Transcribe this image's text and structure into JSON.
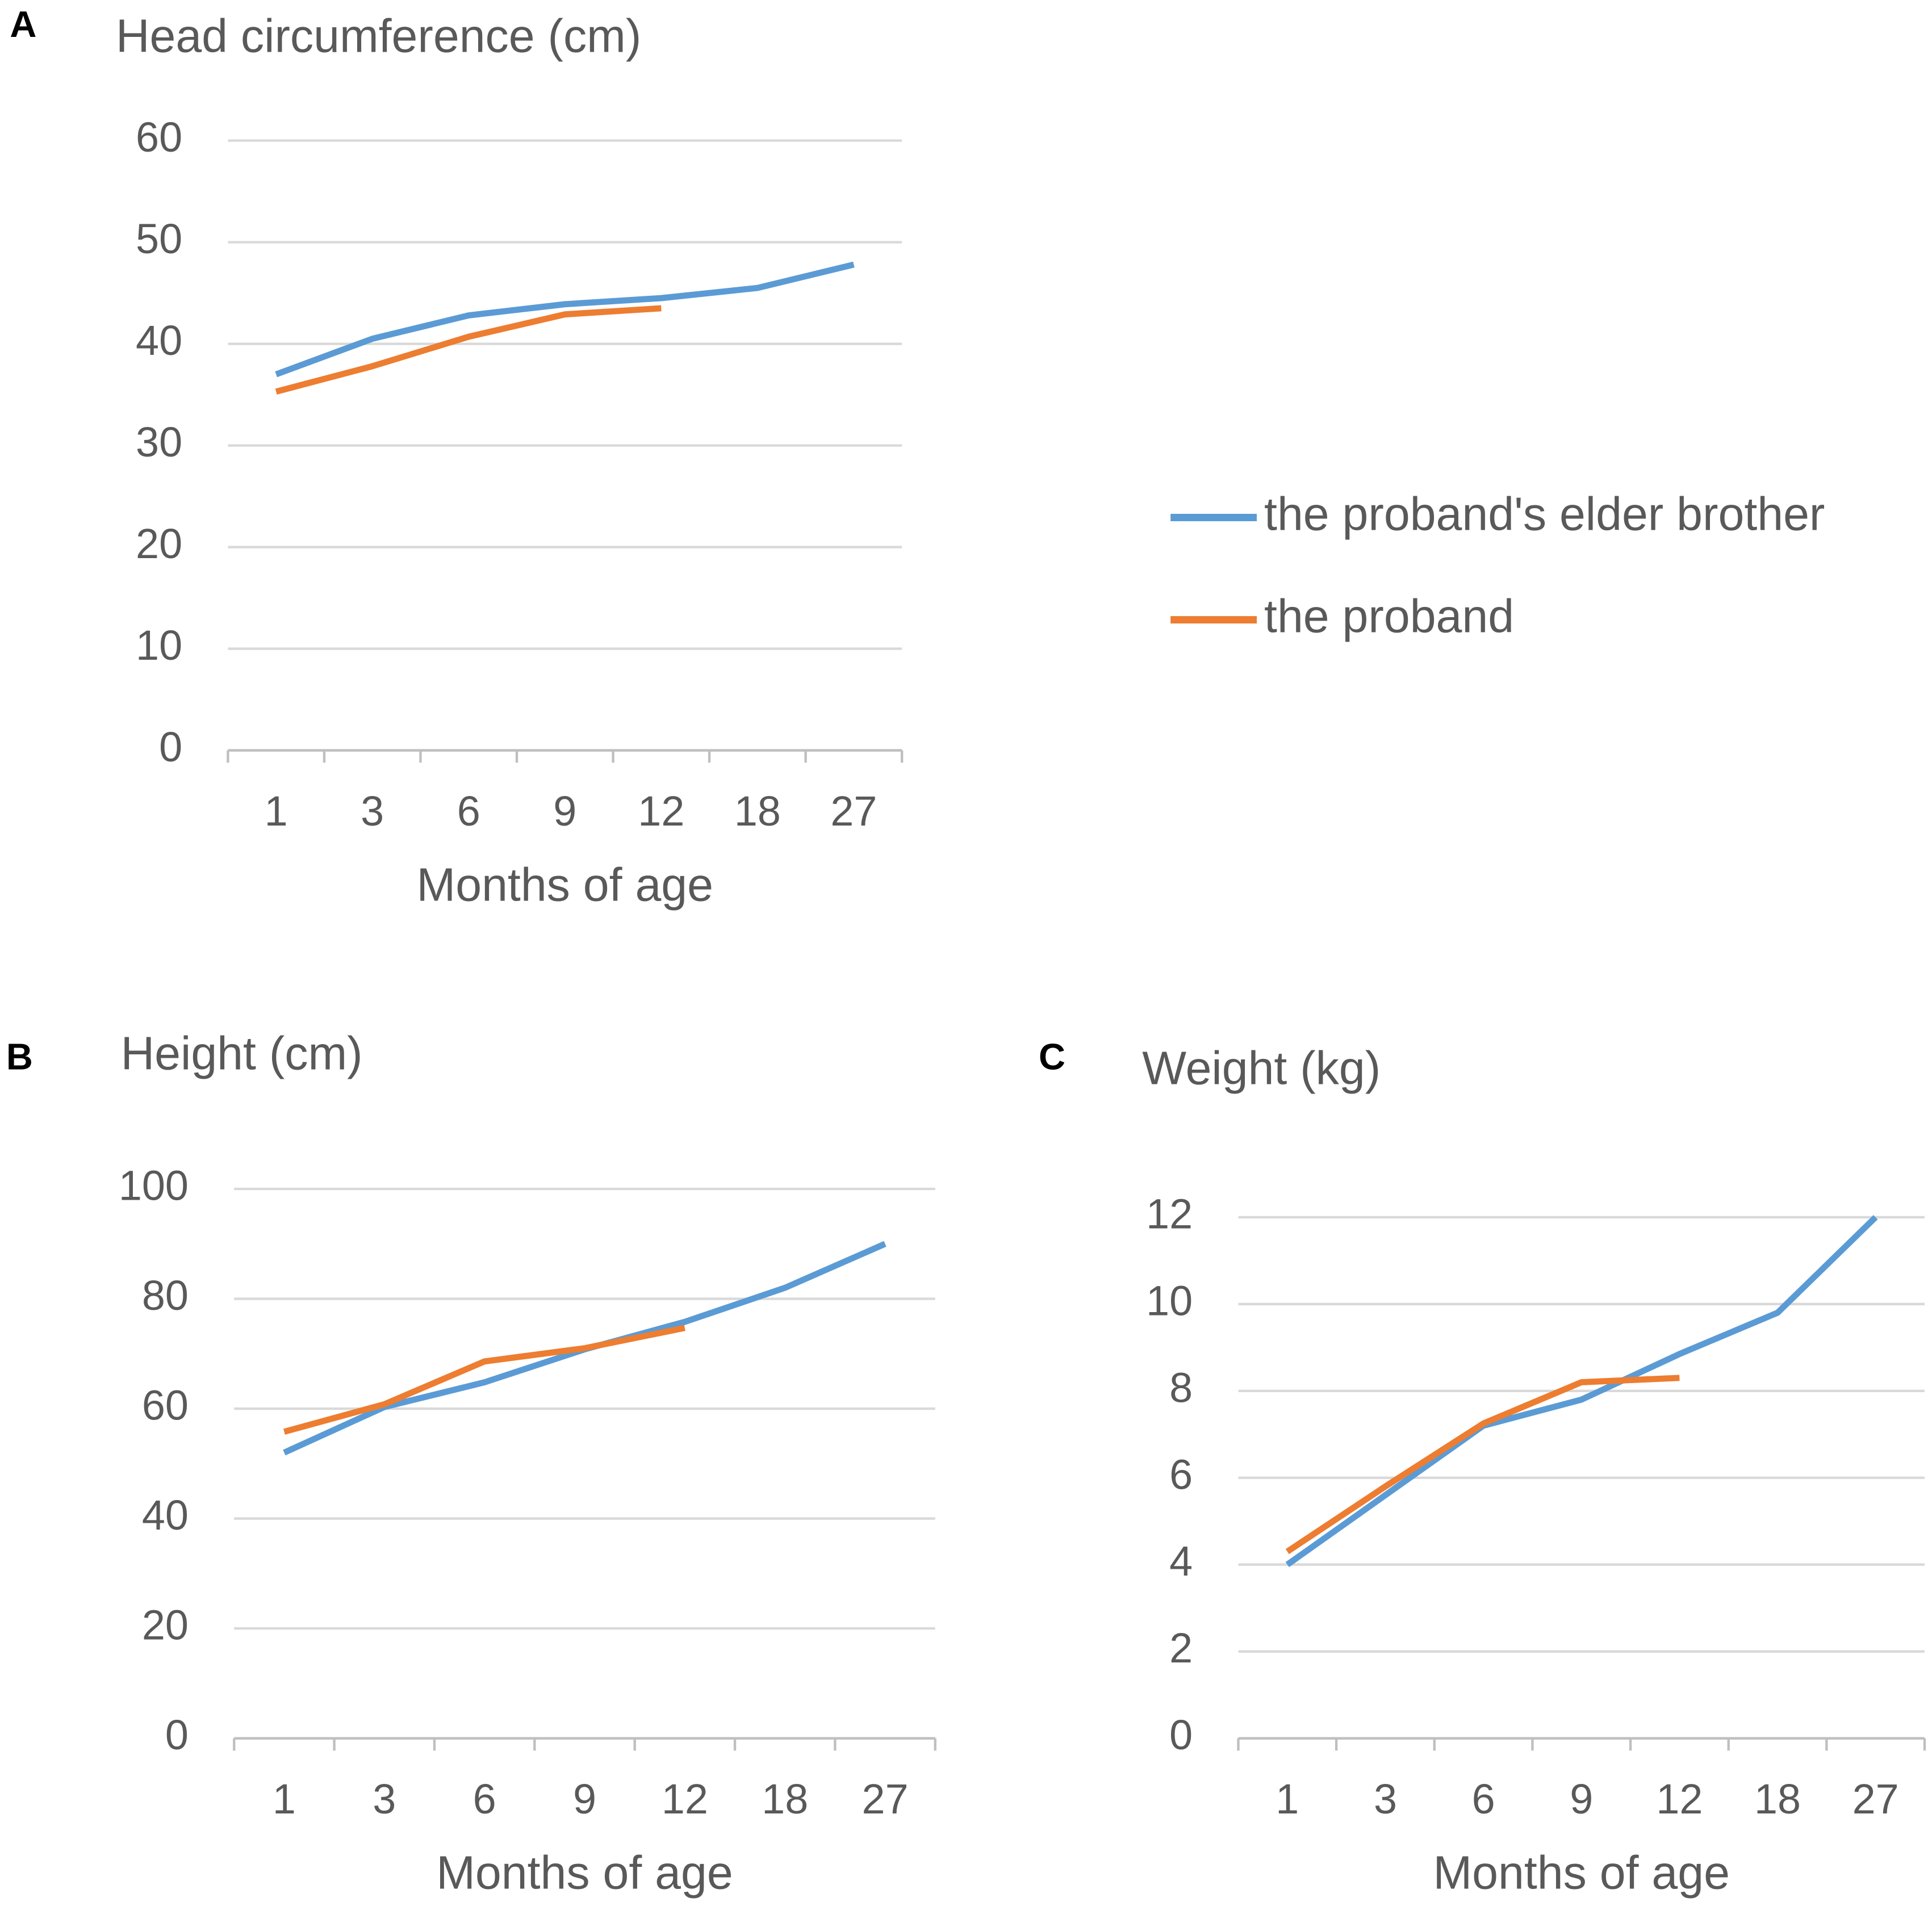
{
  "chart_data": [
    {
      "type": "line",
      "panel_label": "A",
      "title": "Head circumference (cm)",
      "x_label": "Months of age",
      "categories": [
        "1",
        "3",
        "6",
        "9",
        "12",
        "18",
        "27"
      ],
      "series": [
        {
          "name": "the proband's elder brother",
          "color": "#5b9bd5",
          "values": [
            37,
            40.5,
            42.8,
            43.9,
            44.5,
            45.5,
            47.8
          ]
        },
        {
          "name": "the proband",
          "color": "#ed7d31",
          "values": [
            35.3,
            37.8,
            40.7,
            42.9,
            43.5,
            null,
            null
          ]
        }
      ],
      "ylim": [
        0,
        60
      ],
      "yticks": [
        0,
        10,
        20,
        30,
        40,
        50,
        60
      ],
      "grid": true,
      "legend": "right"
    },
    {
      "type": "line",
      "panel_label": "B",
      "title": "Height (cm)",
      "x_label": "Months of age",
      "categories": [
        "1",
        "3",
        "6",
        "9",
        "12",
        "18",
        "27"
      ],
      "series": [
        {
          "name": "the proband's elder brother",
          "color": "#5b9bd5",
          "values": [
            52,
            60.3,
            64.8,
            70.8,
            75.8,
            82,
            90
          ]
        },
        {
          "name": "the proband",
          "color": "#ed7d31",
          "values": [
            55.8,
            60.8,
            68.6,
            71,
            74.7,
            null,
            null
          ]
        }
      ],
      "ylim": [
        0,
        100
      ],
      "yticks": [
        0,
        20,
        40,
        60,
        80,
        100
      ],
      "grid": true
    },
    {
      "type": "line",
      "panel_label": "C",
      "title": "Weight (kg)",
      "x_label": "Months of age",
      "categories": [
        "1",
        "3",
        "6",
        "9",
        "12",
        "18",
        "27"
      ],
      "series": [
        {
          "name": "the proband's elder brother",
          "color": "#5b9bd5",
          "values": [
            4.0,
            5.6,
            7.2,
            7.8,
            8.85,
            9.8,
            12
          ]
        },
        {
          "name": "the proband",
          "color": "#ed7d31",
          "values": [
            4.3,
            5.8,
            7.25,
            8.2,
            8.3,
            null,
            null
          ]
        }
      ],
      "ylim": [
        0,
        12
      ],
      "yticks": [
        0,
        2,
        4,
        6,
        8,
        10,
        12
      ],
      "grid": true
    }
  ]
}
